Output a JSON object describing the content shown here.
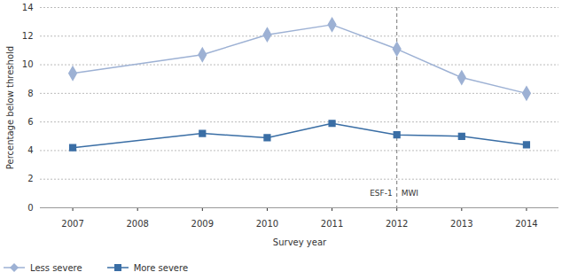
{
  "chart_data": {
    "type": "line",
    "x_label": "Survey year",
    "y_label": "Percentage below threshold",
    "x": [
      2007,
      2009,
      2010,
      2011,
      2012,
      2013,
      2014
    ],
    "series": [
      {
        "name": "Less severe",
        "color": "#9db1d4",
        "marker": "diamond",
        "values": [
          9.4,
          10.7,
          12.1,
          12.8,
          11.1,
          9.1,
          8.0
        ]
      },
      {
        "name": "More severe",
        "color": "#3a6ea5",
        "marker": "square",
        "values": [
          4.2,
          5.2,
          4.9,
          5.9,
          5.1,
          5.0,
          4.4
        ]
      }
    ],
    "xlim": [
      2006.5,
      2014.5
    ],
    "xticks": [
      2007,
      2008,
      2009,
      2010,
      2011,
      2012,
      2013,
      2014
    ],
    "ylim": [
      0,
      14
    ],
    "yticks": [
      0,
      2,
      4,
      6,
      8,
      10,
      12,
      14
    ],
    "grid": true,
    "legend": "bottom-left",
    "annotations": [
      {
        "x": 2012,
        "left_text": "ESF-1",
        "right_text": "MWI"
      }
    ]
  }
}
